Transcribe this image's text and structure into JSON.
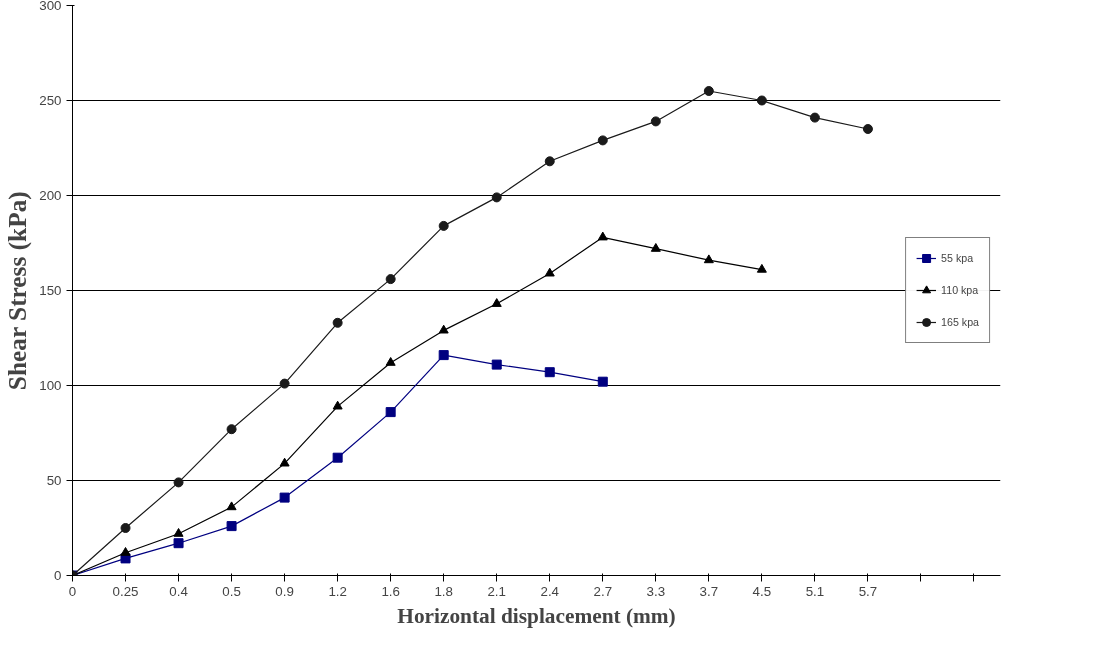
{
  "chart_data": {
    "type": "line",
    "xlabel": "Horizontal displacement (mm)",
    "ylabel": "Shear Stress (kPa)",
    "categories": [
      "0",
      "0.25",
      "0.4",
      "0.5",
      "0.9",
      "1.2",
      "1.6",
      "1.8",
      "2.1",
      "2.4",
      "2.7",
      "3.3",
      "3.7",
      "4.5",
      "5.1",
      "5.7",
      null,
      null
    ],
    "series": [
      {
        "name": "55 kpa",
        "color": "#000080",
        "marker": "square",
        "values": [
          0,
          9,
          17,
          26,
          41,
          62,
          86,
          116,
          111,
          107,
          102,
          null,
          null,
          null,
          null,
          null,
          null,
          null
        ]
      },
      {
        "name": "110 kpa",
        "color": "#000000",
        "marker": "triangle",
        "values": [
          0,
          12,
          22,
          36,
          59,
          89,
          112,
          129,
          143,
          159,
          178,
          172,
          166,
          161,
          null,
          null,
          null,
          null
        ]
      },
      {
        "name": "165 kpa",
        "color": "#1a1a1a",
        "marker": "circle",
        "values": [
          0,
          25,
          49,
          77,
          101,
          133,
          156,
          184,
          199,
          218,
          229,
          239,
          255,
          250,
          241,
          235,
          null,
          null
        ]
      }
    ],
    "ylim": [
      0,
      300
    ],
    "yticks": [
      0,
      50,
      100,
      150,
      200,
      250,
      300
    ],
    "grid": "y",
    "legend": "right",
    "line_style": "solid"
  }
}
